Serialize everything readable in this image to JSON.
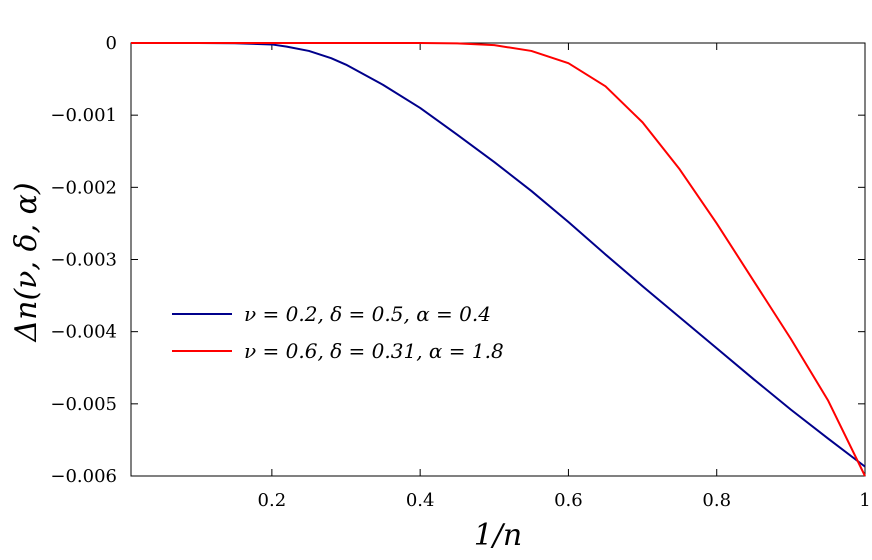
{
  "chart_data": {
    "type": "line",
    "xlabel": "1/n",
    "ylabel": "Δn(ν, δ, α)",
    "xlim": [
      0.01,
      1.0
    ],
    "ylim": [
      -0.006,
      0.0
    ],
    "xticks": [
      {
        "value": 0.2,
        "label": "0.2"
      },
      {
        "value": 0.4,
        "label": "0.4"
      },
      {
        "value": 0.6,
        "label": "0.6"
      },
      {
        "value": 0.8,
        "label": "0.8"
      },
      {
        "value": 1.0,
        "label": "1"
      }
    ],
    "yticks": [
      {
        "value": 0.0,
        "label": "0"
      },
      {
        "value": -0.001,
        "label": "−0.001"
      },
      {
        "value": -0.002,
        "label": "−0.002"
      },
      {
        "value": -0.003,
        "label": "−0.003"
      },
      {
        "value": -0.004,
        "label": "−0.004"
      },
      {
        "value": -0.005,
        "label": "−0.005"
      },
      {
        "value": -0.006,
        "label": "−0.006"
      }
    ],
    "legend_position": "center-left",
    "grid": false,
    "series": [
      {
        "name": "ν = 0.2, δ = 0.5, α = 0.4",
        "color": "#00008b",
        "x": [
          0.01,
          0.1,
          0.15,
          0.2,
          0.22,
          0.25,
          0.28,
          0.3,
          0.35,
          0.4,
          0.45,
          0.5,
          0.55,
          0.6,
          0.65,
          0.7,
          0.75,
          0.8,
          0.85,
          0.9,
          0.95,
          1.0
        ],
        "y": [
          0.0,
          0.0,
          -3e-06,
          -2e-05,
          -5e-05,
          -0.00011,
          -0.00021,
          -0.0003,
          -0.00058,
          -0.0009,
          -0.00127,
          -0.00165,
          -0.00205,
          -0.00248,
          -0.00293,
          -0.00337,
          -0.0038,
          -0.00423,
          -0.00466,
          -0.00508,
          -0.00548,
          -0.00587
        ]
      },
      {
        "name": "ν = 0.6, δ = 0.31, α = 1.8",
        "color": "#ff0000",
        "x": [
          0.01,
          0.3,
          0.4,
          0.45,
          0.5,
          0.55,
          0.6,
          0.65,
          0.7,
          0.75,
          0.8,
          0.85,
          0.9,
          0.95,
          1.0
        ],
        "y": [
          0.0,
          0.0,
          0.0,
          -5e-06,
          -3e-05,
          -0.00011,
          -0.00028,
          -0.0006,
          -0.0011,
          -0.00175,
          -0.0025,
          -0.0033,
          -0.0041,
          -0.00495,
          -0.006
        ]
      }
    ]
  }
}
